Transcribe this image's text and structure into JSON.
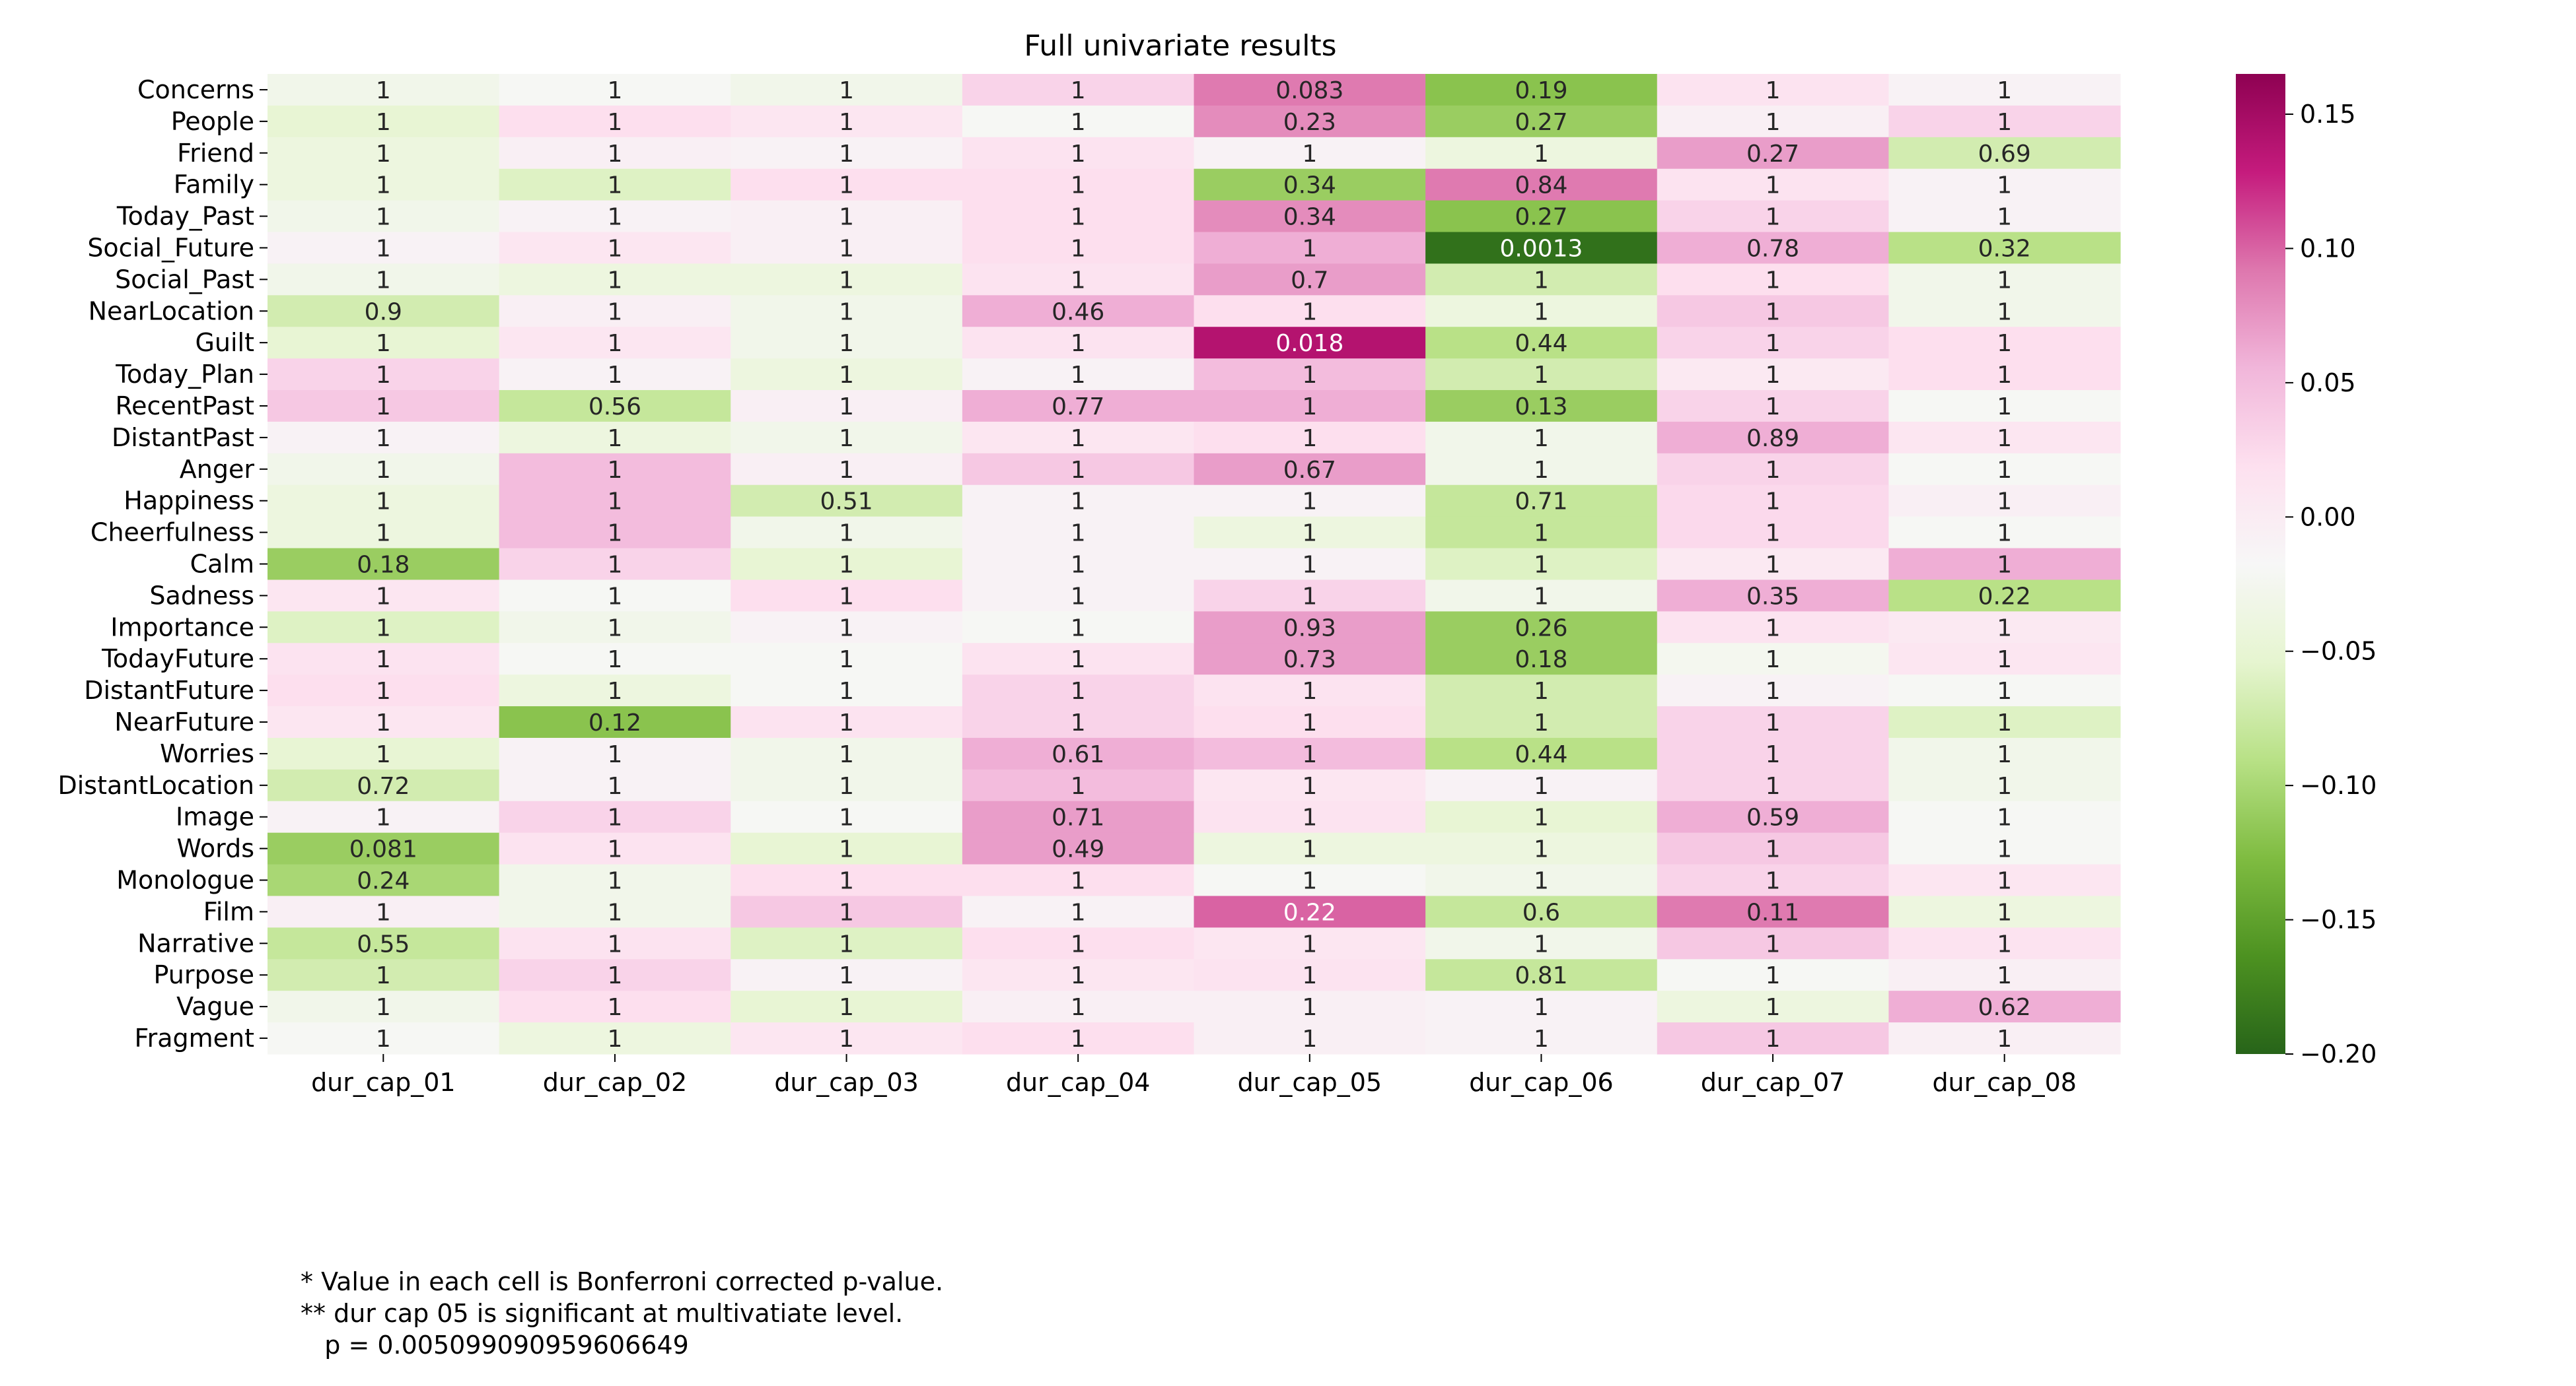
{
  "chart_data": {
    "type": "heatmap",
    "title": "Full univariate results",
    "rows": [
      "Concerns",
      "People",
      "Friend",
      "Family",
      "Today_Past",
      "Social_Future",
      "Social_Past",
      "NearLocation",
      "Guilt",
      "Today_Plan",
      "RecentPast",
      "DistantPast",
      "Anger",
      "Happiness",
      "Cheerfulness",
      "Calm",
      "Sadness",
      "Importance",
      "TodayFuture",
      "DistantFuture",
      "NearFuture",
      "Worries",
      "DistantLocation",
      "Image",
      "Words",
      "Monologue",
      "Film",
      "Narrative",
      "Purpose",
      "Vague",
      "Fragment"
    ],
    "columns": [
      "dur_cap_01",
      "dur_cap_02",
      "dur_cap_03",
      "dur_cap_04",
      "dur_cap_05",
      "dur_cap_06",
      "dur_cap_07",
      "dur_cap_08"
    ],
    "cell_labels": [
      [
        "1",
        "1",
        "1",
        "1",
        "0.083",
        "0.19",
        "1",
        "1"
      ],
      [
        "1",
        "1",
        "1",
        "1",
        "0.23",
        "0.27",
        "1",
        "1"
      ],
      [
        "1",
        "1",
        "1",
        "1",
        "1",
        "1",
        "0.27",
        "0.69"
      ],
      [
        "1",
        "1",
        "1",
        "1",
        "0.34",
        "0.84",
        "1",
        "1"
      ],
      [
        "1",
        "1",
        "1",
        "1",
        "0.34",
        "0.27",
        "1",
        "1"
      ],
      [
        "1",
        "1",
        "1",
        "1",
        "1",
        "0.0013",
        "0.78",
        "0.32"
      ],
      [
        "1",
        "1",
        "1",
        "1",
        "0.7",
        "1",
        "1",
        "1"
      ],
      [
        "0.9",
        "1",
        "1",
        "0.46",
        "1",
        "1",
        "1",
        "1"
      ],
      [
        "1",
        "1",
        "1",
        "1",
        "0.018",
        "0.44",
        "1",
        "1"
      ],
      [
        "1",
        "1",
        "1",
        "1",
        "1",
        "1",
        "1",
        "1"
      ],
      [
        "1",
        "0.56",
        "1",
        "0.77",
        "1",
        "0.13",
        "1",
        "1"
      ],
      [
        "1",
        "1",
        "1",
        "1",
        "1",
        "1",
        "0.89",
        "1"
      ],
      [
        "1",
        "1",
        "1",
        "1",
        "0.67",
        "1",
        "1",
        "1"
      ],
      [
        "1",
        "1",
        "0.51",
        "1",
        "1",
        "0.71",
        "1",
        "1"
      ],
      [
        "1",
        "1",
        "1",
        "1",
        "1",
        "1",
        "1",
        "1"
      ],
      [
        "0.18",
        "1",
        "1",
        "1",
        "1",
        "1",
        "1",
        "1"
      ],
      [
        "1",
        "1",
        "1",
        "1",
        "1",
        "1",
        "0.35",
        "0.22"
      ],
      [
        "1",
        "1",
        "1",
        "1",
        "0.93",
        "0.26",
        "1",
        "1"
      ],
      [
        "1",
        "1",
        "1",
        "1",
        "0.73",
        "0.18",
        "1",
        "1"
      ],
      [
        "1",
        "1",
        "1",
        "1",
        "1",
        "1",
        "1",
        "1"
      ],
      [
        "1",
        "0.12",
        "1",
        "1",
        "1",
        "1",
        "1",
        "1"
      ],
      [
        "1",
        "1",
        "1",
        "0.61",
        "1",
        "0.44",
        "1",
        "1"
      ],
      [
        "0.72",
        "1",
        "1",
        "1",
        "1",
        "1",
        "1",
        "1"
      ],
      [
        "1",
        "1",
        "1",
        "0.71",
        "1",
        "1",
        "0.59",
        "1"
      ],
      [
        "0.081",
        "1",
        "1",
        "0.49",
        "1",
        "1",
        "1",
        "1"
      ],
      [
        "0.24",
        "1",
        "1",
        "1",
        "1",
        "1",
        "1",
        "1"
      ],
      [
        "1",
        "1",
        "1",
        "1",
        "0.22",
        "0.6",
        "0.11",
        "1"
      ],
      [
        "0.55",
        "1",
        "1",
        "1",
        "1",
        "1",
        "1",
        "1"
      ],
      [
        "1",
        "1",
        "1",
        "1",
        "1",
        "0.81",
        "1",
        "1"
      ],
      [
        "1",
        "1",
        "1",
        "1",
        "1",
        "1",
        "1",
        "0.62"
      ],
      [
        "1",
        "1",
        "1",
        "1",
        "1",
        "1",
        "1",
        "1"
      ]
    ],
    "values": [
      [
        -0.03,
        -0.02,
        -0.03,
        0.03,
        0.09,
        -0.12,
        0.015,
        -0.01
      ],
      [
        -0.05,
        0.02,
        0.01,
        -0.02,
        0.08,
        -0.11,
        -0.005,
        0.03
      ],
      [
        -0.04,
        -0.005,
        -0.01,
        0.015,
        -0.01,
        -0.04,
        0.07,
        -0.07
      ],
      [
        -0.04,
        -0.06,
        0.02,
        0.02,
        -0.11,
        0.09,
        0.015,
        -0.01
      ],
      [
        -0.03,
        -0.01,
        -0.005,
        0.02,
        0.08,
        -0.12,
        0.03,
        -0.01
      ],
      [
        -0.01,
        0.01,
        -0.005,
        0.02,
        0.06,
        -0.19,
        0.06,
        -0.09
      ],
      [
        -0.03,
        -0.04,
        -0.04,
        0.015,
        0.07,
        -0.07,
        0.02,
        -0.03
      ],
      [
        -0.07,
        -0.005,
        -0.03,
        0.06,
        0.02,
        -0.04,
        0.04,
        -0.03
      ],
      [
        -0.05,
        0.01,
        -0.03,
        0.015,
        0.14,
        -0.09,
        0.03,
        0.02
      ],
      [
        0.03,
        -0.01,
        -0.04,
        -0.01,
        0.05,
        -0.07,
        0.005,
        0.02
      ],
      [
        0.04,
        -0.08,
        -0.005,
        0.06,
        0.06,
        -0.11,
        0.03,
        -0.02
      ],
      [
        -0.01,
        -0.04,
        -0.03,
        0.01,
        0.02,
        -0.03,
        0.06,
        0.01
      ],
      [
        -0.03,
        0.05,
        -0.005,
        0.04,
        0.07,
        -0.03,
        0.03,
        -0.02
      ],
      [
        -0.04,
        0.05,
        -0.07,
        -0.01,
        -0.01,
        -0.08,
        0.025,
        -0.005
      ],
      [
        -0.04,
        0.05,
        -0.03,
        -0.01,
        -0.04,
        -0.08,
        0.025,
        -0.02
      ],
      [
        -0.11,
        0.03,
        -0.05,
        -0.01,
        -0.01,
        -0.06,
        0.005,
        0.06
      ],
      [
        0.01,
        -0.02,
        0.02,
        -0.01,
        0.03,
        -0.03,
        0.06,
        -0.09
      ],
      [
        -0.06,
        -0.03,
        -0.01,
        -0.02,
        0.07,
        -0.11,
        0.015,
        0.005
      ],
      [
        0.015,
        -0.02,
        -0.02,
        0.015,
        0.07,
        -0.11,
        -0.025,
        0.01
      ],
      [
        0.02,
        -0.04,
        -0.02,
        0.03,
        0.015,
        -0.07,
        -0.01,
        -0.02
      ],
      [
        0.01,
        -0.12,
        0.015,
        0.03,
        0.02,
        -0.07,
        0.03,
        -0.06
      ],
      [
        -0.05,
        -0.01,
        -0.03,
        0.06,
        0.05,
        -0.09,
        0.03,
        -0.03
      ],
      [
        -0.07,
        -0.01,
        -0.03,
        0.05,
        0.01,
        -0.01,
        0.03,
        -0.03
      ],
      [
        -0.01,
        0.03,
        -0.02,
        0.07,
        0.015,
        -0.05,
        0.06,
        -0.02
      ],
      [
        -0.11,
        0.015,
        -0.05,
        0.07,
        -0.04,
        -0.04,
        0.04,
        -0.02
      ],
      [
        -0.1,
        -0.03,
        0.02,
        0.02,
        -0.02,
        -0.03,
        0.03,
        0.01
      ],
      [
        -0.005,
        -0.03,
        0.04,
        -0.01,
        0.1,
        -0.08,
        0.09,
        -0.04
      ],
      [
        -0.08,
        0.015,
        -0.06,
        0.02,
        0.01,
        -0.03,
        0.04,
        0.015
      ],
      [
        -0.07,
        0.03,
        -0.01,
        0.01,
        0.015,
        -0.08,
        -0.02,
        -0.005
      ],
      [
        -0.03,
        0.02,
        -0.05,
        -0.005,
        -0.005,
        -0.01,
        -0.04,
        0.06
      ],
      [
        -0.02,
        -0.04,
        0.01,
        0.02,
        -0.005,
        -0.01,
        0.04,
        -0.005
      ]
    ],
    "vmin": -0.2,
    "vmax": 0.165,
    "colormap": "PiYG_r",
    "colorbar_ticks": [
      {
        "value": 0.15,
        "label": "0.15"
      },
      {
        "value": 0.1,
        "label": "0.10"
      },
      {
        "value": 0.05,
        "label": "0.05"
      },
      {
        "value": 0.0,
        "label": "0.00"
      },
      {
        "value": -0.05,
        "label": "−0.05"
      },
      {
        "value": -0.1,
        "label": "−0.10"
      },
      {
        "value": -0.15,
        "label": "−0.15"
      },
      {
        "value": -0.2,
        "label": "−0.20"
      }
    ],
    "colormap_stops": [
      "#276419",
      "#4d9221",
      "#7fbc41",
      "#b8e186",
      "#e6f5d0",
      "#f7f7f7",
      "#fde0ef",
      "#f1b6da",
      "#de77ae",
      "#c51b7d",
      "#8e0152"
    ],
    "footnotes": [
      "* Value in each cell is Bonferroni corrected p-value.",
      "** dur cap 05 is significant at multivatiate level.",
      "   p = 0.005099090959606649"
    ]
  }
}
